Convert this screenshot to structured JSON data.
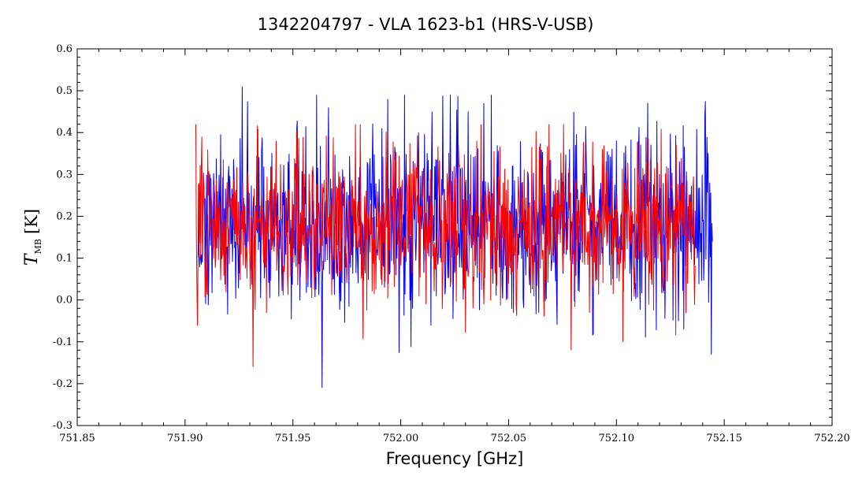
{
  "chart_data": {
    "type": "line",
    "title": "1342204797 - VLA 1623-b1 (HRS-V-USB)",
    "xlabel": "Frequency [GHz]",
    "ylabel": {
      "symbol": "T",
      "subscript": "MB",
      "unit": "[K]"
    },
    "xlim": [
      751.85,
      752.2
    ],
    "ylim": [
      -0.3,
      0.6
    ],
    "x_ticks": [
      "751.85",
      "751.90",
      "751.95",
      "752.00",
      "752.05",
      "752.10",
      "752.15",
      "752.20"
    ],
    "y_ticks": [
      "-0.3",
      "-0.2",
      "-0.1",
      "0.0",
      "0.1",
      "0.2",
      "0.3",
      "0.4",
      "0.5",
      "0.6"
    ],
    "grid": false,
    "legend": "none",
    "series": [
      {
        "color": "#0000ff",
        "x_start": 751.906,
        "x_end": 752.1445,
        "approx_mean": 0.18,
        "approx_noise_range": [
          -0.21,
          0.51
        ],
        "notable_points": [
          {
            "x": 751.9265,
            "y": 0.51
          },
          {
            "x": 751.9635,
            "y": -0.21
          },
          {
            "x": 751.9665,
            "y": 0.46
          },
          {
            "x": 752.0145,
            "y": 0.45
          },
          {
            "x": 752.0385,
            "y": 0.47
          },
          {
            "x": 752.144,
            "y": -0.13
          }
        ]
      },
      {
        "color": "#ff0000",
        "x_start": 751.905,
        "x_end": 752.1365,
        "approx_mean": 0.18,
        "approx_noise_range": [
          -0.16,
          0.44
        ],
        "notable_points": [
          {
            "x": 751.905,
            "y": 0.42
          },
          {
            "x": 751.9315,
            "y": -0.16
          },
          {
            "x": 752.079,
            "y": -0.12
          },
          {
            "x": 752.103,
            "y": -0.1
          }
        ]
      }
    ]
  }
}
